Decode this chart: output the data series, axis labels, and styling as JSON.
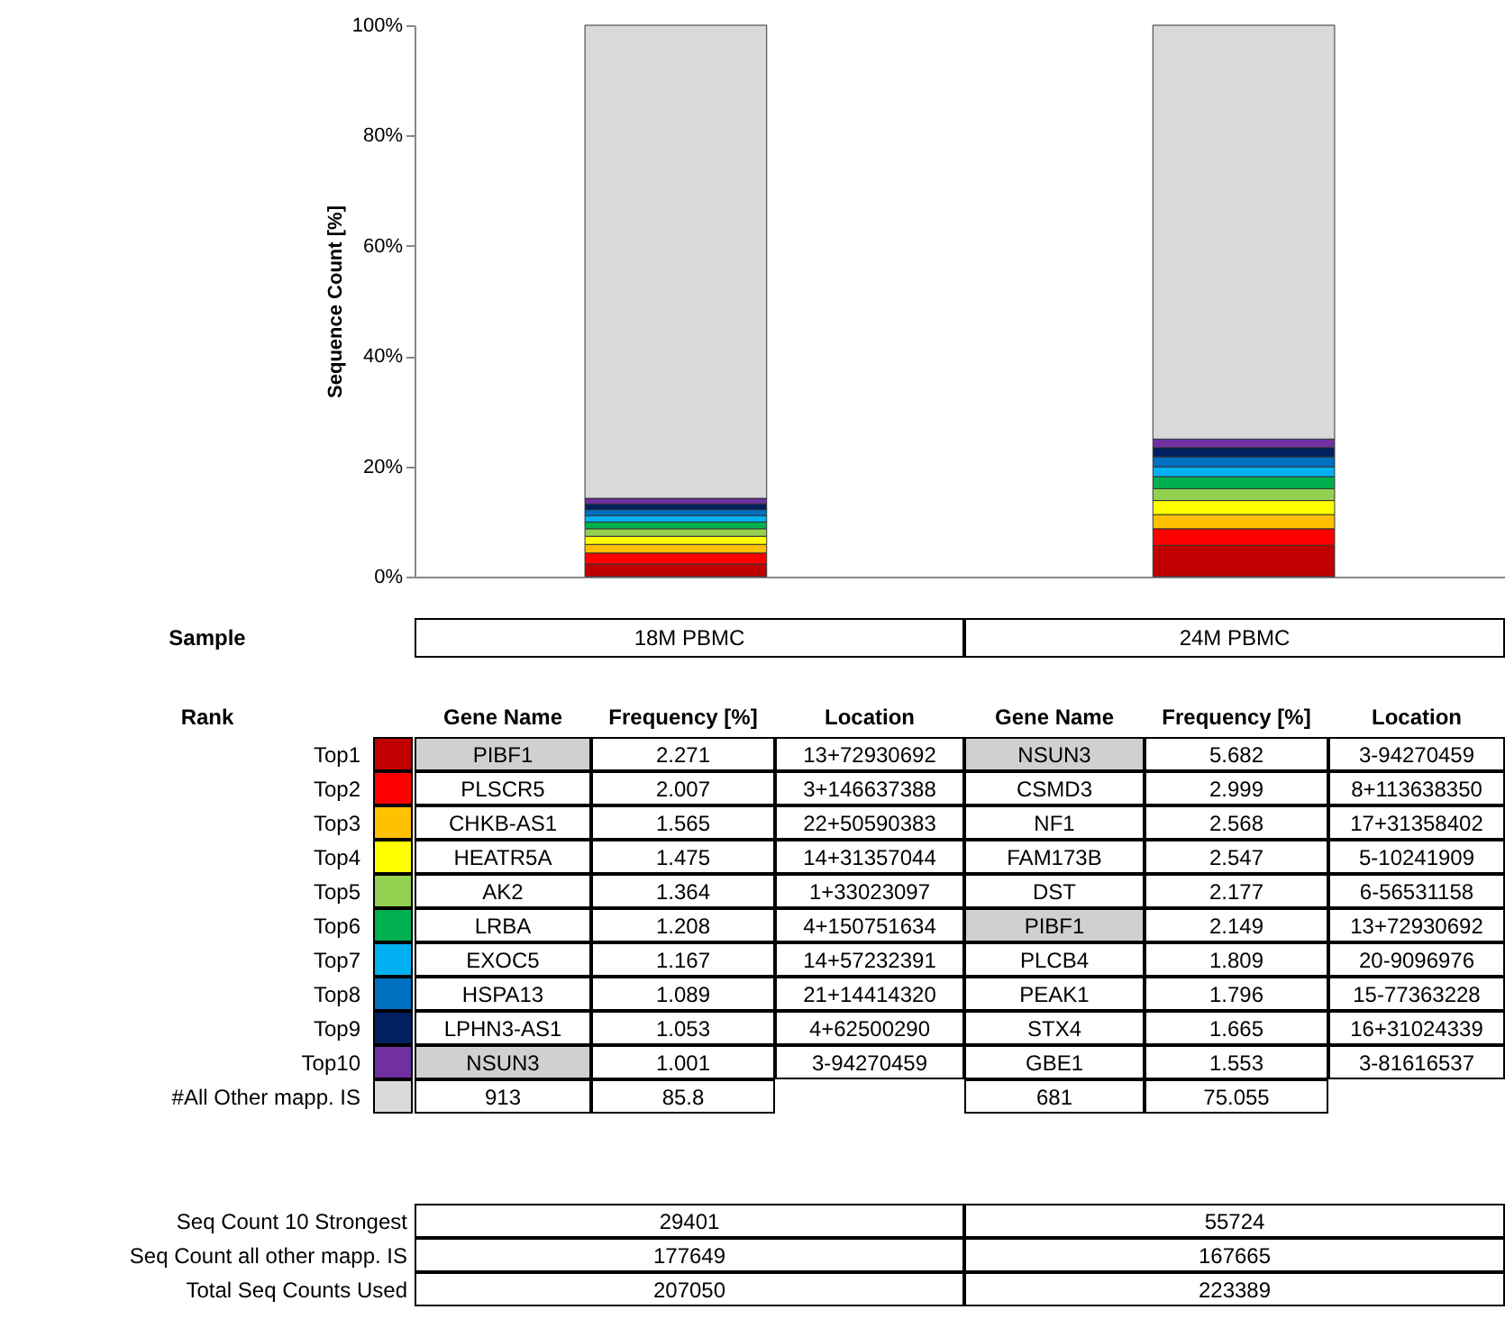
{
  "chart_data": {
    "type": "bar",
    "stacked": true,
    "ylabel": "Sequence Count [%]",
    "categories": [
      "18M PBMC",
      "24M PBMC"
    ],
    "ylim": [
      0,
      100
    ],
    "yticks": [
      {
        "value": 0,
        "label": "0%"
      },
      {
        "value": 20,
        "label": "20%"
      },
      {
        "value": 40,
        "label": "40%"
      },
      {
        "value": 60,
        "label": "60%"
      },
      {
        "value": 80,
        "label": "80%"
      },
      {
        "value": 100,
        "label": "100%"
      }
    ],
    "tick_labels": "y",
    "data_labels": true,
    "legend": "bottom",
    "series": [
      {
        "name": "Top1",
        "color": "#c00000",
        "values": [
          2.271,
          5.682
        ]
      },
      {
        "name": "Top2",
        "color": "#ff0000",
        "values": [
          2.007,
          2.999
        ]
      },
      {
        "name": "Top3",
        "color": "#ffc000",
        "values": [
          1.565,
          2.568
        ]
      },
      {
        "name": "Top4",
        "color": "#ffff00",
        "values": [
          1.475,
          2.547
        ]
      },
      {
        "name": "Top5",
        "color": "#92d050",
        "values": [
          1.364,
          2.177
        ]
      },
      {
        "name": "Top6",
        "color": "#00b050",
        "values": [
          1.208,
          2.149
        ]
      },
      {
        "name": "Top7",
        "color": "#00b0f0",
        "values": [
          1.167,
          1.809
        ]
      },
      {
        "name": "Top8",
        "color": "#0070c0",
        "values": [
          1.089,
          1.796
        ]
      },
      {
        "name": "Top9",
        "color": "#002060",
        "values": [
          1.053,
          1.665
        ]
      },
      {
        "name": "Top10",
        "color": "#7030a0",
        "values": [
          1.001,
          1.553
        ]
      },
      {
        "name": "#All Other mapp. IS",
        "color": "#d9d9d9",
        "values": [
          85.8,
          75.055
        ]
      }
    ],
    "annotations": [
      "Sample",
      "Rank",
      "Gene Name",
      "Frequency [%]",
      "Location",
      "PIBF1",
      "PLSCR5",
      "CHKB-AS1",
      "HEATR5A",
      "AK2",
      "LRBA",
      "EXOC5",
      "HSPA13",
      "LPHN3-AS1",
      "NSUN3",
      "13+72930692",
      "3+146637388",
      "22+50590383",
      "14+31357044",
      "1+33023097",
      "4+150751634",
      "14+57232391",
      "21+14414320",
      "4+62500290",
      "3-94270459",
      "NSUN3",
      "CSMD3",
      "NF1",
      "FAM173B",
      "DST",
      "PIBF1",
      "PLCB4",
      "PEAK1",
      "STX4",
      "GBE1",
      "3-94270459",
      "8+113638350",
      "17+31358402",
      "5-10241909",
      "6-56531158",
      "13+72930692",
      "20-9096976",
      "15-77363228",
      "16+31024339",
      "3-81616537",
      "913",
      "681",
      "Seq Count 10 Strongest",
      "29401",
      "55724",
      "Seq Count all other mapp. IS",
      "177649",
      "167665",
      "Total Seq Counts Used",
      "207050",
      "223389"
    ]
  }
}
